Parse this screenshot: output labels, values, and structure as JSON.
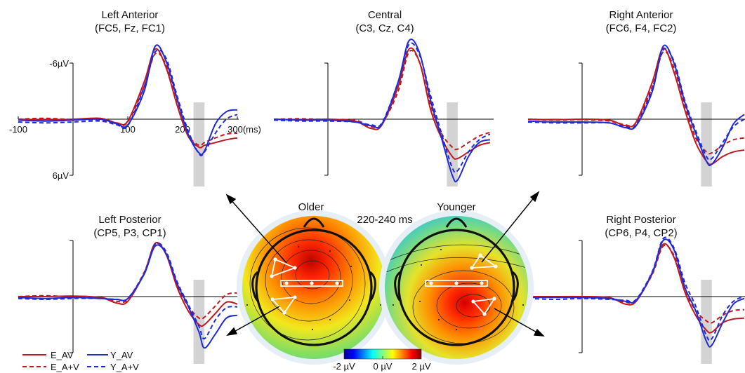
{
  "title_time": "220-240 ms",
  "colors": {
    "E_AV": "#c0191e",
    "E_A+V": "#c0191e",
    "Y_AV": "#1f2ad8",
    "Y_A+V": "#1f2ad8",
    "window": "#d3d3d3",
    "axis": "#000000"
  },
  "legend": [
    {
      "label": "E_AV",
      "color": "#c0191e",
      "style": "solid"
    },
    {
      "label": "Y_AV",
      "color": "#1f2ad8",
      "style": "solid"
    },
    {
      "label": "E_A+V",
      "color": "#c0191e",
      "style": "dashed"
    },
    {
      "label": "Y_A+V",
      "color": "#1f2ad8",
      "style": "dashed"
    }
  ],
  "topomaps": {
    "older_label": "Older",
    "younger_label": "Younger",
    "colorbar_ticks": [
      "-2 µV",
      "0 µV",
      "2 µV"
    ],
    "colorbar_range": [
      -2,
      2
    ],
    "colormap": "jet"
  },
  "chart_data": [
    {
      "type": "line",
      "title": "Left Anterior",
      "subtitle": "(FC5, Fz, FC1)",
      "y_tick_labels": {
        "top": "-6µV",
        "bottom": "6µV"
      },
      "x_tick_labels": [
        "-100",
        "100",
        "200",
        "300(ms)"
      ],
      "show_x_ticks": true,
      "xlim": [
        -100,
        300
      ],
      "ylim": [
        -6,
        6
      ],
      "y_inverted": true,
      "highlight_window": [
        220,
        240
      ],
      "series": [
        {
          "name": "E_AV",
          "x": [
            -100,
            -50,
            0,
            50,
            80,
            100,
            130,
            150,
            170,
            190,
            210,
            230,
            240,
            260,
            280,
            300
          ],
          "y": [
            0,
            0.05,
            0,
            -0.1,
            0.4,
            0.2,
            -4,
            -7.5,
            -5.5,
            -1.5,
            1.8,
            3,
            2.8,
            2.5,
            2.2,
            2
          ]
        },
        {
          "name": "E_A+V",
          "x": [
            -100,
            -50,
            0,
            50,
            80,
            100,
            130,
            150,
            170,
            190,
            210,
            230,
            240,
            260,
            280,
            300
          ],
          "y": [
            0,
            -0.1,
            0.05,
            0.1,
            0.5,
            0.3,
            -3.5,
            -7,
            -5.8,
            -2,
            1.6,
            2.8,
            2.5,
            2.0,
            1.6,
            1.5
          ]
        },
        {
          "name": "Y_AV",
          "x": [
            -100,
            -50,
            0,
            50,
            80,
            100,
            130,
            150,
            170,
            190,
            210,
            230,
            240,
            260,
            280,
            300
          ],
          "y": [
            0.1,
            0.2,
            0.1,
            0,
            0.5,
            0.6,
            -3,
            -7.8,
            -6.2,
            -2.2,
            1.6,
            3.6,
            3.4,
            0.5,
            -0.8,
            -1
          ]
        },
        {
          "name": "Y_A+V",
          "x": [
            -100,
            -50,
            0,
            50,
            80,
            100,
            130,
            150,
            170,
            190,
            210,
            230,
            240,
            260,
            280,
            300
          ],
          "y": [
            0.3,
            0.4,
            0.3,
            0.2,
            0.6,
            0.7,
            -3.5,
            -7.2,
            -6.5,
            -2.5,
            1.2,
            3.7,
            3.5,
            1.5,
            0,
            -0.5
          ]
        }
      ]
    },
    {
      "type": "line",
      "title": "Central",
      "subtitle": "(C3, Cz, C4)",
      "y_tick_labels": {
        "top": "",
        "bottom": ""
      },
      "x_tick_labels": [],
      "show_x_ticks": false,
      "xlim": [
        -100,
        300
      ],
      "ylim": [
        -6,
        6
      ],
      "y_inverted": true,
      "highlight_window": [
        220,
        240
      ],
      "series": [
        {
          "name": "E_AV",
          "x": [
            -100,
            -50,
            0,
            50,
            80,
            100,
            130,
            150,
            170,
            190,
            210,
            230,
            240,
            260,
            280,
            300
          ],
          "y": [
            0,
            0.05,
            0,
            0.2,
            1,
            0.6,
            -3.5,
            -7.5,
            -6,
            -1,
            2,
            4,
            4.2,
            3.5,
            2.8,
            2.5
          ]
        },
        {
          "name": "E_A+V",
          "x": [
            -100,
            -50,
            0,
            50,
            80,
            100,
            130,
            150,
            170,
            190,
            210,
            230,
            240,
            260,
            280,
            300
          ],
          "y": [
            0,
            -0.05,
            0.05,
            0.1,
            0.8,
            0.5,
            -3,
            -7.2,
            -6,
            -1.5,
            1.5,
            3,
            3.2,
            2.5,
            1.8,
            1.4
          ]
        },
        {
          "name": "Y_AV",
          "x": [
            -100,
            -50,
            0,
            50,
            80,
            100,
            130,
            150,
            170,
            190,
            210,
            230,
            240,
            260,
            280,
            300
          ],
          "y": [
            0,
            0.1,
            0.1,
            0.3,
            0.7,
            0.5,
            -4,
            -8.4,
            -7,
            -2,
            2,
            6,
            6.5,
            4,
            2.5,
            2.2
          ]
        },
        {
          "name": "Y_A+V",
          "x": [
            -100,
            -50,
            0,
            50,
            80,
            100,
            130,
            150,
            170,
            190,
            210,
            230,
            240,
            260,
            280,
            300
          ],
          "y": [
            0.1,
            0.2,
            0.2,
            0.3,
            0.6,
            0.4,
            -4,
            -8,
            -6.8,
            -2.5,
            1.5,
            5.2,
            5.5,
            3.5,
            2.2,
            1.6
          ]
        }
      ]
    },
    {
      "type": "line",
      "title": "Right Anterior",
      "subtitle": "(FC6, F4, FC2)",
      "y_tick_labels": {
        "top": "",
        "bottom": ""
      },
      "x_tick_labels": [],
      "show_x_ticks": false,
      "xlim": [
        -100,
        300
      ],
      "ylim": [
        -6,
        6
      ],
      "y_inverted": true,
      "highlight_window": [
        220,
        240
      ],
      "series": [
        {
          "name": "E_AV",
          "x": [
            -100,
            -50,
            0,
            50,
            80,
            100,
            130,
            150,
            170,
            190,
            210,
            230,
            240,
            260,
            280,
            300
          ],
          "y": [
            0,
            0.05,
            0,
            0.1,
            0.7,
            0.3,
            -4,
            -7.6,
            -5,
            -1,
            2.5,
            4.5,
            4.8,
            4,
            3.5,
            3.3
          ]
        },
        {
          "name": "E_A+V",
          "x": [
            -100,
            -50,
            0,
            50,
            80,
            100,
            130,
            150,
            170,
            190,
            210,
            230,
            240,
            260,
            280,
            300
          ],
          "y": [
            0,
            0.1,
            0.05,
            0.2,
            0.6,
            0.4,
            -3.5,
            -7.2,
            -5.5,
            -1.5,
            2,
            3.5,
            3.6,
            2.8,
            2.2,
            2
          ]
        },
        {
          "name": "Y_AV",
          "x": [
            -100,
            -50,
            0,
            50,
            80,
            100,
            130,
            150,
            170,
            190,
            210,
            230,
            240,
            260,
            280,
            300
          ],
          "y": [
            0.2,
            0.3,
            0.3,
            0.4,
            0.9,
            0.7,
            -3,
            -7.8,
            -6,
            -1.8,
            1.5,
            4.5,
            4.8,
            3,
            0.5,
            -0.5
          ]
        },
        {
          "name": "Y_A+V",
          "x": [
            -100,
            -50,
            0,
            50,
            80,
            100,
            130,
            150,
            170,
            190,
            210,
            230,
            240,
            260,
            280,
            300
          ],
          "y": [
            0.3,
            0.4,
            0.4,
            0.4,
            0.8,
            0.6,
            -3.3,
            -7.4,
            -6.2,
            -2,
            1.2,
            4,
            4.2,
            2.5,
            0.8,
            0
          ]
        }
      ]
    },
    {
      "type": "line",
      "title": "Left Posterior",
      "subtitle": "(CP5, P3, CP1)",
      "y_tick_labels": {
        "top": "",
        "bottom": ""
      },
      "x_tick_labels": [],
      "show_x_ticks": false,
      "xlim": [
        -100,
        300
      ],
      "ylim": [
        -6,
        6
      ],
      "y_inverted": true,
      "highlight_window": [
        220,
        240
      ],
      "series": [
        {
          "name": "E_AV",
          "x": [
            -100,
            -50,
            0,
            50,
            80,
            100,
            130,
            150,
            170,
            190,
            210,
            230,
            240,
            260,
            280,
            300
          ],
          "y": [
            0,
            0,
            -0.05,
            0.1,
            0.7,
            0.5,
            -2.5,
            -5.7,
            -4.5,
            -1,
            1.5,
            3,
            3,
            1.8,
            0.6,
            0.8
          ]
        },
        {
          "name": "E_A+V",
          "x": [
            -100,
            -50,
            0,
            50,
            80,
            100,
            130,
            150,
            170,
            190,
            210,
            230,
            240,
            260,
            280,
            300
          ],
          "y": [
            0,
            -0.1,
            0.05,
            0.1,
            0.5,
            0.3,
            -2.6,
            -5.6,
            -4.6,
            -1.2,
            1,
            2.3,
            2.2,
            1,
            -0.2,
            -0.4
          ]
        },
        {
          "name": "Y_AV",
          "x": [
            -100,
            -50,
            0,
            50,
            80,
            100,
            130,
            150,
            170,
            190,
            210,
            230,
            240,
            260,
            280,
            300
          ],
          "y": [
            0.1,
            0.2,
            0.1,
            0.2,
            0.3,
            0.2,
            -2.4,
            -5.4,
            -4.6,
            -1.4,
            1,
            3.8,
            5.5,
            4,
            2.3,
            2
          ]
        },
        {
          "name": "Y_A+V",
          "x": [
            -100,
            -50,
            0,
            50,
            80,
            100,
            130,
            150,
            170,
            190,
            210,
            230,
            240,
            260,
            280,
            300
          ],
          "y": [
            0.2,
            0.3,
            0.2,
            0.2,
            0.3,
            0.2,
            -2.5,
            -5.6,
            -4.8,
            -1.6,
            0.8,
            3.2,
            4.5,
            2.5,
            1.2,
            1.1
          ]
        }
      ]
    },
    {
      "type": "line",
      "title": "Right Posterior",
      "subtitle": "(CP6, P4, CP2)",
      "y_tick_labels": {
        "top": "",
        "bottom": ""
      },
      "x_tick_labels": [],
      "show_x_ticks": false,
      "xlim": [
        -100,
        300
      ],
      "ylim": [
        -6,
        6
      ],
      "y_inverted": true,
      "highlight_window": [
        220,
        240
      ],
      "series": [
        {
          "name": "E_AV",
          "x": [
            -100,
            -50,
            0,
            50,
            80,
            100,
            130,
            150,
            170,
            190,
            210,
            230,
            240,
            260,
            280,
            300
          ],
          "y": [
            0,
            0,
            0,
            0.1,
            0.8,
            0.5,
            -2.5,
            -5.6,
            -4.2,
            -0.5,
            2,
            3.6,
            3.8,
            2.8,
            2.4,
            2.3
          ]
        },
        {
          "name": "E_A+V",
          "x": [
            -100,
            -50,
            0,
            50,
            80,
            100,
            130,
            150,
            170,
            190,
            210,
            230,
            240,
            260,
            280,
            300
          ],
          "y": [
            0,
            0.05,
            0.05,
            0.2,
            0.6,
            0.4,
            -2.4,
            -5.4,
            -4.4,
            -0.8,
            1.5,
            2.6,
            2.8,
            2,
            1.5,
            1.4
          ]
        },
        {
          "name": "Y_AV",
          "x": [
            -100,
            -50,
            0,
            50,
            80,
            100,
            130,
            150,
            170,
            190,
            210,
            230,
            240,
            260,
            280,
            300
          ],
          "y": [
            0.1,
            0.1,
            0.1,
            0.2,
            0.5,
            0.4,
            -2.6,
            -6,
            -5,
            -1,
            1.5,
            4.8,
            5.2,
            2.8,
            0.8,
            0.2
          ]
        },
        {
          "name": "Y_A+V",
          "x": [
            -100,
            -50,
            0,
            50,
            80,
            100,
            130,
            150,
            170,
            190,
            210,
            230,
            240,
            260,
            280,
            300
          ],
          "y": [
            0.2,
            0.3,
            0.2,
            0.3,
            0.4,
            0.3,
            -2.7,
            -6.2,
            -5.2,
            -1.5,
            1,
            4.2,
            4.5,
            2,
            0.5,
            0
          ]
        }
      ]
    }
  ]
}
